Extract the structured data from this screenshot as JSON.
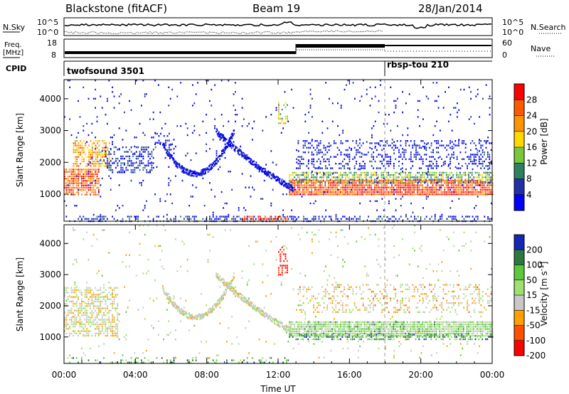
{
  "header": {
    "station": "Blackstone (fitACF)",
    "beam": "Beam 19",
    "date": "28/Jan/2014"
  },
  "sky_panel": {
    "left_label": "N.Sky",
    "right_label": "N.Search",
    "left_ticks": [
      "10^5",
      "10^0"
    ],
    "right_ticks": [
      "10^5",
      "10^0"
    ]
  },
  "freq_panel": {
    "label_line1": "Freq.",
    "label_line2": "[MHz]",
    "right_label": "Nave",
    "left_ticks": [
      "18",
      "8"
    ],
    "right_ticks": [
      "60",
      "0"
    ]
  },
  "cpid_panel": {
    "label": "CPID",
    "segments": [
      {
        "name": "twofsound 3501",
        "start_hour": 0,
        "end_hour": 18
      },
      {
        "name": "rbsp-tou 210",
        "start_hour": 18,
        "end_hour": 24
      }
    ]
  },
  "chart_data": [
    {
      "type": "heatmap",
      "quantity": "power",
      "xlabel": "",
      "ylabel": "Slant Range [km]",
      "x_range_hours": [
        0,
        24
      ],
      "ylim": [
        150,
        4600
      ],
      "y_ticks": [
        1000,
        2000,
        3000,
        4000
      ],
      "colorbar_label": "Power [dB]",
      "colorbar_ticks": [
        "28",
        "24",
        "20",
        "16",
        "12",
        "8",
        "4"
      ],
      "colorbar_colors": [
        "#ff0000",
        "#ff5a00",
        "#ff9400",
        "#ffd800",
        "#78c83c",
        "#2f8060",
        "#2030a8",
        "#0000ff"
      ],
      "scatter_regions": [
        {
          "x": [
            0.0,
            2.0
          ],
          "y": [
            950,
            1800
          ],
          "level": 0.8,
          "density": 0.8
        },
        {
          "x": [
            0.5,
            2.6
          ],
          "y": [
            1900,
            2700
          ],
          "level": 0.65,
          "density": 0.6
        },
        {
          "x": [
            2.3,
            5.0
          ],
          "y": [
            1700,
            2500
          ],
          "level": 0.15,
          "density": 0.45
        },
        {
          "x": [
            5.0,
            6.0
          ],
          "y": [
            2400,
            3000
          ],
          "level": 0.1,
          "density": 0.3
        },
        {
          "x": [
            12.6,
            24.0
          ],
          "y": [
            950,
            1450
          ],
          "level": 0.85,
          "density": 0.9
        },
        {
          "x": [
            12.6,
            24.0
          ],
          "y": [
            1350,
            1700
          ],
          "level": 0.4,
          "density": 0.7
        },
        {
          "x": [
            13.0,
            24.0
          ],
          "y": [
            1800,
            2700
          ],
          "level": 0.1,
          "density": 0.3
        },
        {
          "x": [
            12.0,
            12.5
          ],
          "y": [
            3200,
            3900
          ],
          "level": 0.5,
          "density": 0.5
        },
        {
          "x": [
            0.0,
            24.0
          ],
          "y": [
            150,
            320
          ],
          "level": 0.15,
          "density": 0.35
        },
        {
          "x": [
            10.0,
            12.5
          ],
          "y": [
            150,
            320
          ],
          "level": 0.85,
          "density": 0.6
        },
        {
          "x": [
            0.0,
            24.0
          ],
          "y": [
            300,
            4600
          ],
          "level": 0.05,
          "density": 0.03
        }
      ],
      "arc_features": [
        {
          "x_start": 5.5,
          "x_end": 9.5,
          "y_start": 2600,
          "y_min": 1950,
          "y_end": 3000
        },
        {
          "x_start": 8.5,
          "x_end": 12.8,
          "y_start": 3000,
          "y_min": 2900,
          "y_end": 1200
        }
      ]
    },
    {
      "type": "heatmap",
      "quantity": "velocity",
      "xlabel": "Time UT",
      "ylabel": "Slant Range [km]",
      "x_range_hours": [
        0,
        24
      ],
      "x_ticks": [
        "00:00",
        "04:00",
        "08:00",
        "12:00",
        "16:00",
        "20:00",
        "00:00"
      ],
      "ylim": [
        150,
        4600
      ],
      "y_ticks": [
        1000,
        2000,
        3000,
        4000
      ],
      "colorbar_label": "Velocity [m s^-1]",
      "colorbar_ticks": [
        "200",
        "100",
        "50",
        "15",
        "-15",
        "-50",
        "-100",
        "-200"
      ],
      "colorbar_colors": [
        "#1428b4",
        "#2c7840",
        "#5cc83c",
        "#a0e070",
        "#c8c8c8",
        "#ffa000",
        "#ff5000",
        "#ff0000"
      ],
      "scatter_regions": [
        {
          "x": [
            0.0,
            3.0
          ],
          "y": [
            1000,
            2600
          ],
          "level": 0.45,
          "density": 0.55
        },
        {
          "x": [
            12.6,
            24.0
          ],
          "y": [
            1000,
            1500
          ],
          "level": 0.6,
          "density": 0.9
        },
        {
          "x": [
            12.6,
            24.0
          ],
          "y": [
            900,
            1100
          ],
          "level": 0.75,
          "density": 0.5
        },
        {
          "x": [
            13.0,
            24.0
          ],
          "y": [
            1800,
            2700
          ],
          "level": 0.4,
          "density": 0.25
        },
        {
          "x": [
            12.0,
            12.5
          ],
          "y": [
            3000,
            3900
          ],
          "level": 0.05,
          "density": 0.5
        },
        {
          "x": [
            0.0,
            13.0
          ],
          "y": [
            150,
            350
          ],
          "level": 0.72,
          "density": 0.25
        },
        {
          "x": [
            0.0,
            24.0
          ],
          "y": [
            300,
            4600
          ],
          "level": 0.5,
          "density": 0.025
        }
      ],
      "arc_features": [
        {
          "x_start": 5.5,
          "x_end": 9.5,
          "y_start": 2600,
          "y_min": 1950,
          "y_end": 3000
        },
        {
          "x_start": 8.5,
          "x_end": 12.8,
          "y_start": 3000,
          "y_min": 2900,
          "y_end": 1200
        }
      ]
    }
  ]
}
